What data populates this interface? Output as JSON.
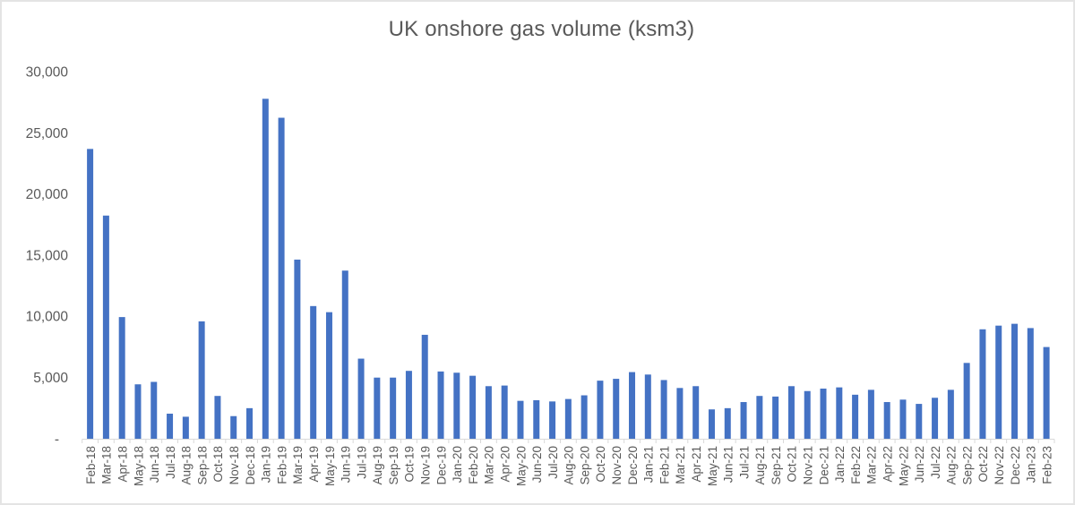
{
  "chart_data": {
    "type": "bar",
    "title": "UK onshore gas volume (ksm3)",
    "xlabel": "",
    "ylabel": "",
    "ylim": [
      0,
      30000
    ],
    "ytick_interval": 5000,
    "grid": false,
    "legend": false,
    "yticks": [
      {
        "label": "30,000",
        "value": 30000
      },
      {
        "label": "25,000",
        "value": 25000
      },
      {
        "label": "20,000",
        "value": 20000
      },
      {
        "label": "15,000",
        "value": 15000
      },
      {
        "label": "10,000",
        "value": 10000
      },
      {
        "label": "5,000",
        "value": 5000
      },
      {
        "label": "-",
        "value": 0
      }
    ],
    "categories": [
      "Feb-18",
      "Mar-18",
      "Apr-18",
      "May-18",
      "Jun-18",
      "Jul-18",
      "Aug-18",
      "Sep-18",
      "Oct-18",
      "Nov-18",
      "Dec-18",
      "Jan-19",
      "Feb-19",
      "Mar-19",
      "Apr-19",
      "May-19",
      "Jun-19",
      "Jul-19",
      "Aug-19",
      "Sep-19",
      "Oct-19",
      "Nov-19",
      "Dec-19",
      "Jan-20",
      "Feb-20",
      "Mar-20",
      "Apr-20",
      "May-20",
      "Jun-20",
      "Jul-20",
      "Aug-20",
      "Sep-20",
      "Oct-20",
      "Nov-20",
      "Dec-20",
      "Jan-21",
      "Feb-21",
      "Mar-21",
      "Apr-21",
      "May-21",
      "Jun-21",
      "Jul-21",
      "Aug-21",
      "Sep-21",
      "Oct-21",
      "Nov-21",
      "Dec-21",
      "Jan-22",
      "Feb-22",
      "Mar-22",
      "Apr-22",
      "May-22",
      "Jun-22",
      "Jul-22",
      "Aug-22",
      "Sep-22",
      "Oct-22",
      "Nov-22",
      "Dec-22",
      "Jan-23",
      "Feb-23"
    ],
    "values": [
      23700,
      18250,
      9950,
      4450,
      4650,
      2050,
      1800,
      9600,
      3500,
      1850,
      2500,
      27800,
      26250,
      14650,
      10850,
      10350,
      13750,
      6550,
      5000,
      5000,
      5550,
      8500,
      5500,
      5400,
      5150,
      4300,
      4350,
      3100,
      3150,
      3050,
      3250,
      3550,
      4750,
      4900,
      5450,
      5250,
      4800,
      4150,
      4300,
      2400,
      2500,
      3000,
      3500,
      3450,
      4300,
      3900,
      4100,
      4200,
      3600,
      4000,
      3000,
      3200,
      2850,
      3350,
      4000,
      6200,
      8950,
      9250,
      9400,
      9050,
      7500
    ],
    "colors": {
      "bar": "#4472C4",
      "text": "#595959",
      "axis": "#D9D9D9",
      "background": "#FFFFFF",
      "border": "#E4E4E4"
    }
  }
}
